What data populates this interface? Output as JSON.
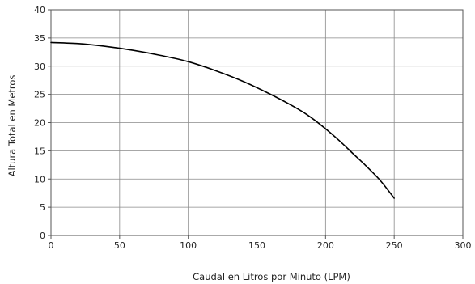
{
  "chart_data": {
    "type": "line",
    "xlabel": "Caudal en Litros por Minuto (LPM)",
    "ylabel": "Altura Total en Metros",
    "xlim": [
      0,
      300
    ],
    "ylim": [
      0,
      40
    ],
    "x_ticks": [
      0,
      50,
      100,
      150,
      200,
      250,
      300
    ],
    "y_ticks": [
      0,
      5,
      10,
      15,
      20,
      25,
      30,
      35,
      40
    ],
    "grid": true,
    "legend": "none",
    "series_color": "#000000",
    "series": [
      {
        "x": [
          0,
          20,
          40,
          60,
          80,
          100,
          120,
          140,
          160,
          180,
          190,
          200,
          210,
          220,
          230,
          240,
          250
        ],
        "y": [
          34.2,
          34.0,
          33.5,
          32.8,
          31.9,
          30.8,
          29.2,
          27.3,
          25.0,
          22.4,
          20.8,
          18.9,
          16.8,
          14.5,
          12.2,
          9.7,
          6.6
        ]
      }
    ]
  }
}
